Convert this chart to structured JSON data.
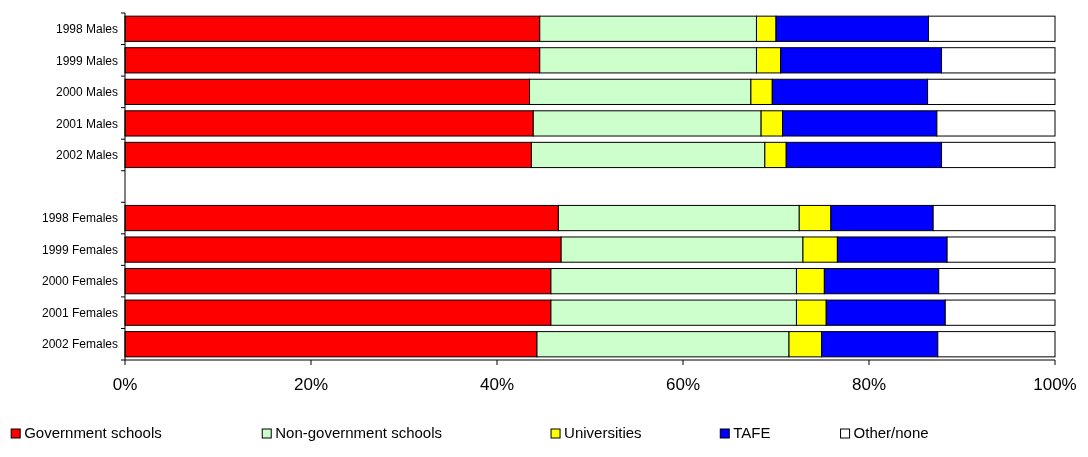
{
  "chart_data": {
    "type": "bar",
    "orientation": "horizontal",
    "stacked": true,
    "categories": [
      "1998 Males",
      "1999 Males",
      "2000 Males",
      "2001 Males",
      "2002 Males",
      null,
      "1998 Females",
      "1999 Females",
      "2000 Females",
      "2001 Females",
      "2002 Females"
    ],
    "series": [
      {
        "name": "Government schools",
        "color": "#ff0000",
        "values": [
          44.6,
          44.6,
          43.5,
          43.9,
          43.7,
          null,
          46.6,
          46.9,
          45.8,
          45.8,
          44.3
        ]
      },
      {
        "name": "Non-government schools",
        "color": "#ccffcc",
        "values": [
          23.3,
          23.3,
          23.8,
          24.5,
          25.1,
          null,
          25.9,
          26.0,
          26.4,
          26.4,
          27.1
        ]
      },
      {
        "name": "Universities",
        "color": "#ffff00",
        "values": [
          2.1,
          2.6,
          2.3,
          2.3,
          2.3,
          null,
          3.4,
          3.7,
          3.0,
          3.2,
          3.5
        ]
      },
      {
        "name": "TAFE",
        "color": "#0000ff",
        "values": [
          16.4,
          17.3,
          16.7,
          16.6,
          16.7,
          null,
          11.0,
          11.8,
          12.3,
          12.8,
          12.5
        ]
      },
      {
        "name": "Other/none",
        "color": "#ffffff",
        "values": [
          13.6,
          12.2,
          13.7,
          12.7,
          12.2,
          null,
          13.1,
          11.6,
          12.5,
          11.8,
          12.6
        ]
      }
    ],
    "xlim": [
      0,
      100
    ],
    "xticks": [
      {
        "value": 0,
        "label": "0%"
      },
      {
        "value": 20,
        "label": "20%"
      },
      {
        "value": 40,
        "label": "40%"
      },
      {
        "value": 60,
        "label": "60%"
      },
      {
        "value": 80,
        "label": "80%"
      },
      {
        "value": 100,
        "label": "100%"
      }
    ],
    "grid": false,
    "legend": "bottom"
  }
}
